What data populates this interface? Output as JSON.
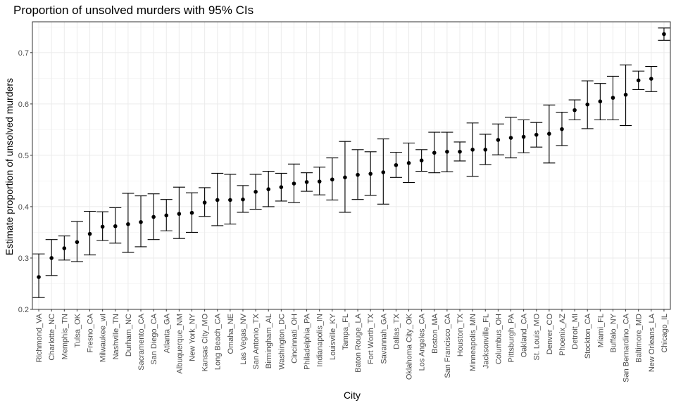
{
  "chart_data": {
    "type": "scatter",
    "title": "Proportion of unsolved murders with 95% CIs",
    "xlabel": "City",
    "ylabel": "Estimate proportion of unsolved murders",
    "ylim": [
      0.2,
      0.76
    ],
    "yticks": [
      0.2,
      0.3,
      0.4,
      0.5,
      0.6,
      0.7
    ],
    "ytick_labels": [
      "0.2",
      "0.3",
      "0.4",
      "0.5",
      "0.6",
      "0.7"
    ],
    "grid": true,
    "error_bars": true,
    "categories": [
      "Richmond_VA",
      "Charlotte_NC",
      "Memphis_TN",
      "Tulsa_OK",
      "Fresno_CA",
      "Milwaukee_wI",
      "Nashville_TN",
      "Durham_NC",
      "Sacramento_CA",
      "San Diego_CA",
      "Atlanta_GA",
      "Albuquerque_NM",
      "New York_NY",
      "Kansas City_MO",
      "Long Beach_CA",
      "Omaha_NE",
      "Las Vegas_NV",
      "San Antonio_TX",
      "Birmingham_AL",
      "Washington_DC",
      "Cincinnati_OH",
      "Philadelphia_PA",
      "Indianapolis_IN",
      "Louisville_KY",
      "Tampa_FL",
      "Baton Rouge_LA",
      "Fort Worth_TX",
      "Savannah_GA",
      "Dallas_TX",
      "Oklahoma City_OK",
      "Los Angeles_CA",
      "Boston_MA",
      "San Francisco_CA",
      "Houston_TX",
      "Minneapolis_MN",
      "Jacksonville_FL",
      "Columbus_OH",
      "Pittsburgh_PA",
      "Oakland_CA",
      "St. Louis_MO",
      "Denver_CO",
      "Phoenix_AZ",
      "Detroit_MI",
      "Stockton_CA",
      "Miami_FL",
      "Buffalo_NY",
      "San Bernardino_CA",
      "Baltimore_MD",
      "New Orleans_LA",
      "Chicago_IL"
    ],
    "estimate": [
      0.263,
      0.3,
      0.319,
      0.331,
      0.347,
      0.361,
      0.362,
      0.366,
      0.37,
      0.38,
      0.383,
      0.386,
      0.388,
      0.408,
      0.413,
      0.413,
      0.414,
      0.429,
      0.434,
      0.438,
      0.445,
      0.448,
      0.449,
      0.453,
      0.457,
      0.462,
      0.464,
      0.467,
      0.481,
      0.485,
      0.49,
      0.505,
      0.507,
      0.507,
      0.511,
      0.511,
      0.53,
      0.534,
      0.536,
      0.54,
      0.542,
      0.551,
      0.588,
      0.599,
      0.605,
      0.612,
      0.618,
      0.646,
      0.649,
      0.736
    ],
    "lower": [
      0.223,
      0.266,
      0.296,
      0.293,
      0.306,
      0.334,
      0.329,
      0.311,
      0.322,
      0.336,
      0.353,
      0.338,
      0.35,
      0.381,
      0.363,
      0.366,
      0.389,
      0.395,
      0.4,
      0.411,
      0.408,
      0.43,
      0.423,
      0.413,
      0.389,
      0.414,
      0.422,
      0.405,
      0.457,
      0.447,
      0.469,
      0.466,
      0.468,
      0.489,
      0.459,
      0.482,
      0.501,
      0.495,
      0.505,
      0.516,
      0.485,
      0.519,
      0.569,
      0.552,
      0.569,
      0.569,
      0.558,
      0.628,
      0.624,
      0.724
    ],
    "upper": [
      0.308,
      0.336,
      0.343,
      0.371,
      0.391,
      0.39,
      0.398,
      0.426,
      0.421,
      0.425,
      0.414,
      0.438,
      0.427,
      0.437,
      0.465,
      0.463,
      0.441,
      0.463,
      0.469,
      0.465,
      0.483,
      0.466,
      0.477,
      0.495,
      0.527,
      0.511,
      0.507,
      0.532,
      0.506,
      0.524,
      0.511,
      0.545,
      0.545,
      0.526,
      0.563,
      0.541,
      0.561,
      0.574,
      0.569,
      0.564,
      0.598,
      0.584,
      0.608,
      0.645,
      0.64,
      0.654,
      0.676,
      0.664,
      0.673,
      0.748
    ]
  }
}
